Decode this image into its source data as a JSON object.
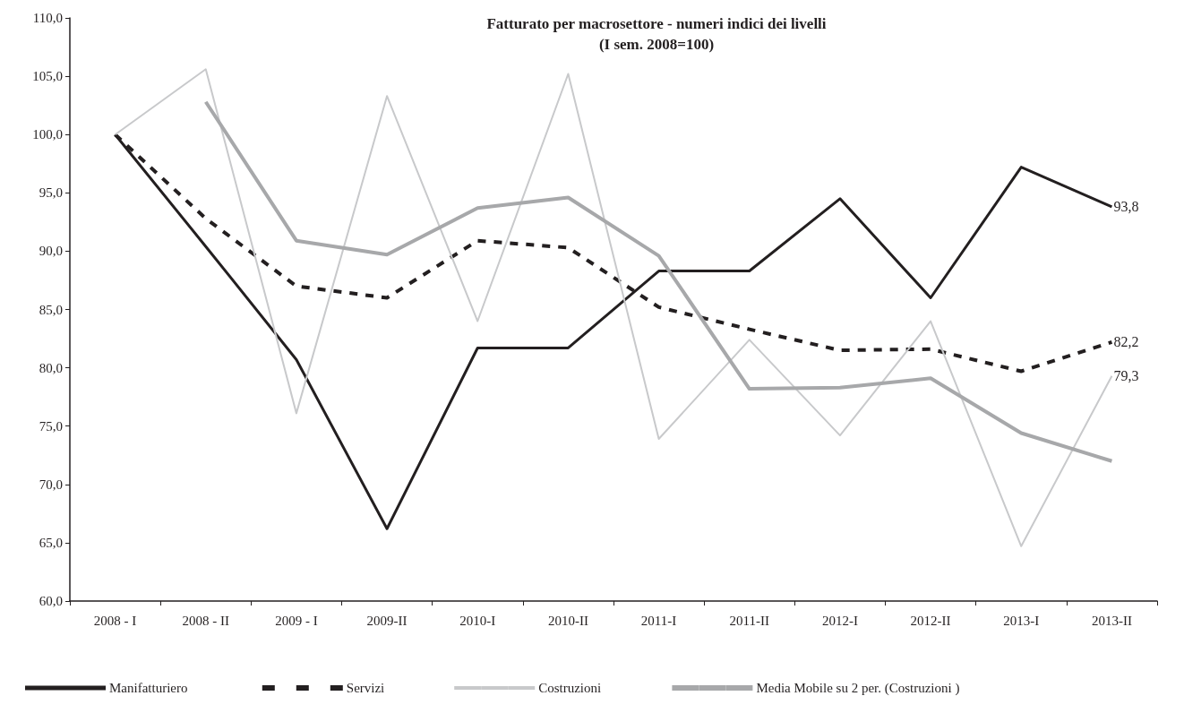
{
  "chart_data": {
    "type": "line",
    "title": "Fatturato per macrosettore - numeri indici dei livelli",
    "subtitle": "(I sem. 2008=100)",
    "categories": [
      "2008 - I",
      "2008 - II",
      "2009 - I",
      "2009-II",
      "2010-I",
      "2010-II",
      "2011-I",
      "2011-II",
      "2012-I",
      "2012-II",
      "2013-I",
      "2013-II"
    ],
    "series": [
      {
        "name": "Manifatturiero",
        "color": "#231f20",
        "line_style": "solid",
        "values": [
          100,
          90.4,
          80.7,
          66.2,
          81.7,
          81.7,
          88.3,
          88.3,
          94.5,
          86.0,
          97.2,
          93.8
        ],
        "value_labels": [
          null,
          null,
          null,
          null,
          null,
          null,
          null,
          null,
          null,
          null,
          null,
          "93,8"
        ]
      },
      {
        "name": "Servizi",
        "color": "#231f20",
        "line_style": "dashed",
        "values": [
          100,
          92.8,
          87.0,
          86.0,
          90.9,
          90.3,
          85.2,
          83.3,
          81.5,
          81.6,
          79.7,
          82.2
        ],
        "value_labels": [
          null,
          null,
          null,
          null,
          null,
          null,
          null,
          null,
          null,
          null,
          null,
          "82,2"
        ]
      },
      {
        "name": "Costruzioni",
        "color": "#c8c9cb",
        "line_style": "solid",
        "values": [
          100,
          105.6,
          76.1,
          103.3,
          84.0,
          105.2,
          73.9,
          82.4,
          74.2,
          84.0,
          64.7,
          79.3
        ],
        "value_labels": [
          null,
          null,
          null,
          null,
          null,
          null,
          null,
          null,
          null,
          null,
          null,
          "79,3"
        ]
      },
      {
        "name": "Media Mobile su 2 per. (Costruzioni )",
        "color": "#a7a8aa",
        "line_style": "solid",
        "values": [
          null,
          102.8,
          90.9,
          89.7,
          93.7,
          94.6,
          89.6,
          78.2,
          78.3,
          79.1,
          74.4,
          72.0
        ]
      }
    ],
    "ylim": [
      60,
      110
    ],
    "yticks": [
      {
        "value": 60,
        "label": "60,0"
      },
      {
        "value": 65,
        "label": "65,0"
      },
      {
        "value": 70,
        "label": "70,0"
      },
      {
        "value": 75,
        "label": "75,0"
      },
      {
        "value": 80,
        "label": "80,0"
      },
      {
        "value": 85,
        "label": "85,0"
      },
      {
        "value": 90,
        "label": "90,0"
      },
      {
        "value": 95,
        "label": "95,0"
      },
      {
        "value": 100,
        "label": "100,0"
      },
      {
        "value": 105,
        "label": "105,0"
      },
      {
        "value": 110,
        "label": "110,0"
      }
    ],
    "grid": false,
    "legend": "bottom",
    "marker": "none"
  }
}
